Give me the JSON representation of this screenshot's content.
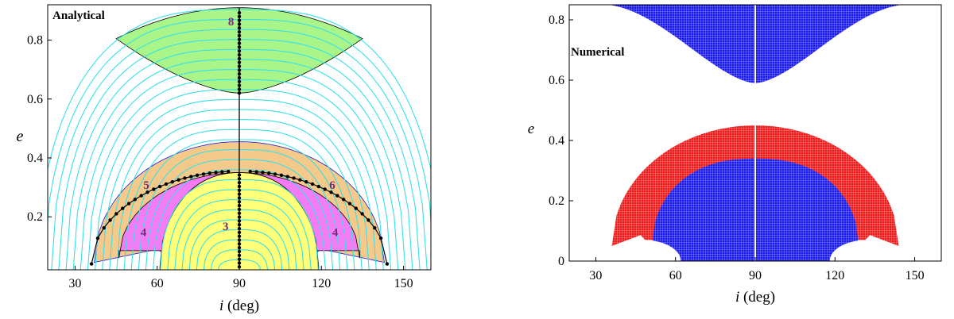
{
  "chart_data": [
    {
      "type": "region-map",
      "annotation": "Analytical",
      "xlabel_var": "i",
      "xlabel_unit": "(deg)",
      "ylabel": "e",
      "xlim": [
        20,
        160
      ],
      "ylim": [
        0.02,
        0.92
      ],
      "xticks": [
        30,
        60,
        90,
        120,
        150
      ],
      "yticks": [
        0.2,
        0.4,
        0.6,
        0.8
      ],
      "region_labels": [
        {
          "text": "8",
          "x": 87,
          "y": 0.85
        },
        {
          "text": "5",
          "x": 56,
          "y": 0.295
        },
        {
          "text": "6",
          "x": 124,
          "y": 0.295
        },
        {
          "text": "4",
          "x": 55,
          "y": 0.135
        },
        {
          "text": "4",
          "x": 125,
          "y": 0.135
        },
        {
          "text": "3",
          "x": 85,
          "y": 0.155
        }
      ],
      "colors": {
        "region8": "#aaf58a",
        "region3": "#ffff7a",
        "region4": "#f57af5",
        "region56": "#f5c98a",
        "contours": "#38e0e8",
        "stable_points": "#000000"
      }
    },
    {
      "type": "region-map",
      "annotation": "Numerical",
      "xlabel_var": "i",
      "xlabel_unit": "(deg)",
      "ylabel": "e",
      "xlim": [
        20,
        160
      ],
      "ylim": [
        0,
        0.85
      ],
      "xticks": [
        30,
        60,
        90,
        120,
        150
      ],
      "yticks": [
        0,
        0.2,
        0.4,
        0.6,
        0.8
      ],
      "colors": {
        "blue": "#1a1aee",
        "red": "#ee1a1a"
      }
    }
  ]
}
